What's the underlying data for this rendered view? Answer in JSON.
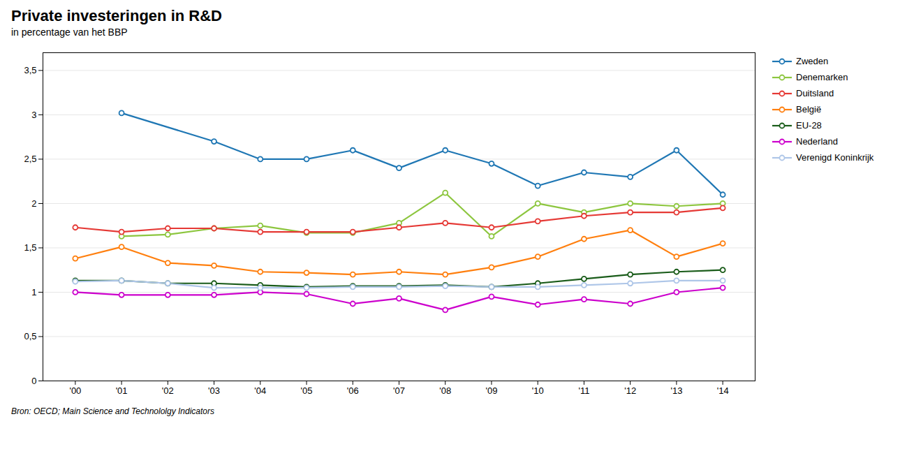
{
  "chart_data": {
    "type": "line",
    "title": "Private investeringen in R&D",
    "subtitle": "in percentage van het BBP",
    "source": "Bron: OECD; Main Science and Technololgy Indicators",
    "x": [
      2000,
      2001,
      2002,
      2003,
      2004,
      2005,
      2006,
      2007,
      2008,
      2009,
      2010,
      2011,
      2012,
      2013,
      2014
    ],
    "series": [
      {
        "name": "Zweden",
        "color": "#1F77B4",
        "values": [
          null,
          3.02,
          null,
          2.7,
          2.5,
          2.5,
          2.6,
          2.4,
          2.6,
          2.45,
          2.2,
          2.35,
          2.3,
          2.6,
          2.1
        ]
      },
      {
        "name": "Denemarken",
        "color": "#8DC63F",
        "values": [
          null,
          1.63,
          1.65,
          1.72,
          1.75,
          1.67,
          1.67,
          1.78,
          2.12,
          1.63,
          2.0,
          1.9,
          2.0,
          1.97,
          2.0
        ]
      },
      {
        "name": "Duitsland",
        "color": "#E53935",
        "values": [
          1.73,
          1.68,
          1.72,
          1.72,
          1.68,
          1.68,
          1.68,
          1.73,
          1.78,
          1.73,
          1.8,
          1.86,
          1.9,
          1.9,
          1.95
        ]
      },
      {
        "name": "België",
        "color": "#FF7F0E",
        "values": [
          1.38,
          1.51,
          1.33,
          1.3,
          1.23,
          1.22,
          1.2,
          1.23,
          1.2,
          1.28,
          1.4,
          1.6,
          1.7,
          1.4,
          1.55
        ]
      },
      {
        "name": "EU-28",
        "color": "#1A5C1A",
        "values": [
          1.13,
          1.13,
          1.1,
          1.1,
          1.08,
          1.06,
          1.07,
          1.07,
          1.08,
          1.06,
          1.1,
          1.15,
          1.2,
          1.23,
          1.25
        ]
      },
      {
        "name": "Nederland",
        "color": "#CC00CC",
        "values": [
          1.0,
          0.97,
          0.97,
          0.97,
          1.0,
          0.98,
          0.87,
          0.93,
          0.8,
          0.95,
          0.86,
          0.92,
          0.87,
          1.0,
          1.05
        ]
      },
      {
        "name": "Verenigd Koninkrijk",
        "color": "#AEC6E8",
        "values": [
          1.12,
          1.13,
          1.1,
          1.05,
          1.05,
          1.05,
          1.06,
          1.06,
          1.07,
          1.06,
          1.06,
          1.08,
          1.1,
          1.13,
          1.13
        ]
      }
    ],
    "xlim": [
      1999.3,
      2014.7
    ],
    "xticks": [
      {
        "value": 2000,
        "label": "'00"
      },
      {
        "value": 2001,
        "label": "'01"
      },
      {
        "value": 2002,
        "label": "'02"
      },
      {
        "value": 2003,
        "label": "'03"
      },
      {
        "value": 2004,
        "label": "'04"
      },
      {
        "value": 2005,
        "label": "'05"
      },
      {
        "value": 2006,
        "label": "'06"
      },
      {
        "value": 2007,
        "label": "'07"
      },
      {
        "value": 2008,
        "label": "'08"
      },
      {
        "value": 2009,
        "label": "'09"
      },
      {
        "value": 2010,
        "label": "'10"
      },
      {
        "value": 2011,
        "label": "'11"
      },
      {
        "value": 2012,
        "label": "'12"
      },
      {
        "value": 2013,
        "label": "'13"
      },
      {
        "value": 2014,
        "label": "'14"
      }
    ],
    "ylim": [
      0,
      3.7
    ],
    "yticks": [
      0,
      {
        "value": 0.5,
        "label": "0,5"
      },
      1,
      {
        "value": 1.5,
        "label": "1,5"
      },
      2,
      {
        "value": 2.5,
        "label": "2,5"
      },
      3,
      {
        "value": 3.5,
        "label": "3,5"
      }
    ],
    "grid": true,
    "legend": "upper right",
    "marker": "circle"
  }
}
